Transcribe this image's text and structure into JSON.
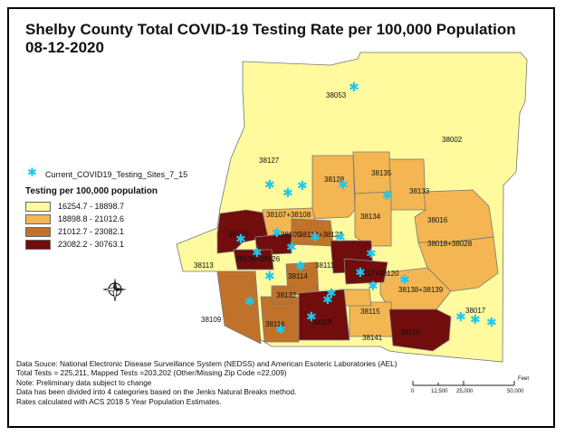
{
  "title": {
    "line1": "Shelby County Total COVID-19 Testing Rate per 100,000 Population",
    "line2": "08-12-2020"
  },
  "legend": {
    "site_label": "Current_COVID19_Testing_Sites_7_15",
    "title": "Testing per 100,000 population",
    "classes": [
      {
        "label": "16254.7 - 18898.7",
        "color": "#fefa9d"
      },
      {
        "label": "18898.8 - 21012.6",
        "color": "#f4b652"
      },
      {
        "label": "21012.7 - 23082.1",
        "color": "#c1722a"
      },
      {
        "label": "23082.2 - 30763.1",
        "color": "#710d0d"
      }
    ],
    "site_color": "#1ec8f0"
  },
  "zip_labels": [
    {
      "text": "38053"
    },
    {
      "text": "38002"
    },
    {
      "text": "38127"
    },
    {
      "text": "38128"
    },
    {
      "text": "38135"
    },
    {
      "text": "38133"
    },
    {
      "text": "38107+38108"
    },
    {
      "text": "38134"
    },
    {
      "text": "38016"
    },
    {
      "text": "38103"
    },
    {
      "text": "38105"
    },
    {
      "text": "38112+38122"
    },
    {
      "text": "38018+38028"
    },
    {
      "text": "38106+38126"
    },
    {
      "text": "38111"
    },
    {
      "text": "38113"
    },
    {
      "text": "38114"
    },
    {
      "text": "38117+38120"
    },
    {
      "text": "38138+38139"
    },
    {
      "text": "38132"
    },
    {
      "text": "38109"
    },
    {
      "text": "38116"
    },
    {
      "text": "38118"
    },
    {
      "text": "38115"
    },
    {
      "text": "38017"
    },
    {
      "text": "38141"
    },
    {
      "text": "38125"
    }
  ],
  "notes": [
    "Data Souce: National Electronic Disease Surveillance System (NEDSS) and American Esoteric Laboratories (AEL)",
    "Total Tests = 225,211, Mapped Tests =203,202 (Other/Missing Zip Code =22,009)",
    "Note: Preliminary data subject to change",
    "Data has been divided into 4 categories based on the Jenks Natural Breaks method.",
    "Rates calculated with ACS 2018 5 Year Population Estimates."
  ],
  "scale": {
    "ticks": [
      "0",
      "12,500",
      "25,000",
      "50,000"
    ],
    "unit": "Feet"
  }
}
